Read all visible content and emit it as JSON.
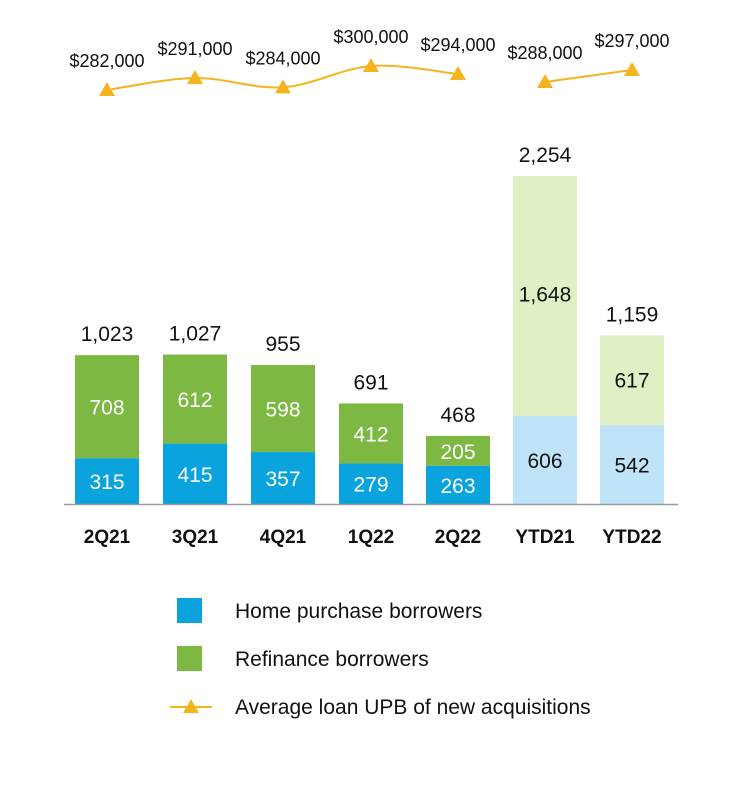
{
  "chart_data": {
    "type": "bar",
    "stacked": true,
    "categories": [
      "2Q21",
      "3Q21",
      "4Q21",
      "1Q22",
      "2Q22",
      "YTD21",
      "YTD22"
    ],
    "totals": [
      "1,023",
      "1,027",
      "955",
      "691",
      "468",
      "2,254",
      "1,159"
    ],
    "series": [
      {
        "name": "Home purchase borrowers",
        "values": [
          315,
          415,
          357,
          279,
          263,
          606,
          542
        ],
        "labels": [
          "315",
          "415",
          "357",
          "279",
          "263",
          "606",
          "542"
        ],
        "color": "#0aa3dd",
        "ytd_color": "#bfe3f8"
      },
      {
        "name": "Refinance borrowers",
        "values": [
          708,
          612,
          598,
          412,
          205,
          1648,
          617
        ],
        "labels": [
          "708",
          "612",
          "598",
          "412",
          "205",
          "1,648",
          "617"
        ],
        "color": "#7db843",
        "ytd_color": "#dff0c4"
      }
    ],
    "line_series": {
      "name": "Average loan UPB of new acquisitions",
      "values": [
        282000,
        291000,
        284000,
        300000,
        294000,
        288000,
        297000
      ],
      "labels": [
        "$282,000",
        "$291,000",
        "$284,000",
        "$300,000",
        "$294,000",
        "$288,000",
        "$297,000"
      ],
      "color": "#f5b41e"
    },
    "legend": {
      "position": "bottom",
      "items": [
        "Home purchase borrowers",
        "Refinance borrowers",
        "Average loan UPB of new acquisitions"
      ]
    },
    "title": "",
    "xlabel": "",
    "ylabel": "",
    "ylim": [
      0,
      2254
    ],
    "grid": false
  }
}
